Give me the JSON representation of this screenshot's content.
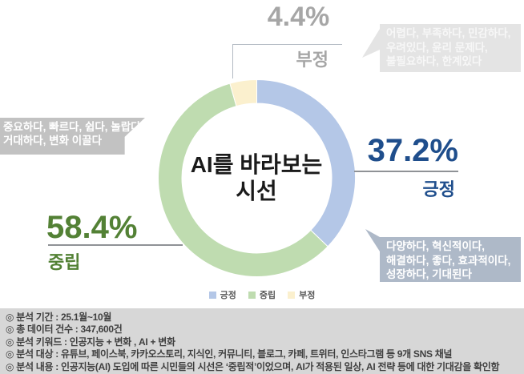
{
  "chart": {
    "center_lines": [
      "AI를 바라보는",
      "시선"
    ]
  },
  "chart_data": {
    "type": "pie",
    "subtype": "donut",
    "title": "AI를 바라보는 시선",
    "categories": [
      "긍정",
      "중립",
      "부정"
    ],
    "values": [
      37.2,
      58.4,
      4.4
    ],
    "unit": "%",
    "colors": [
      "#b4c7e7",
      "#bfdcb0",
      "#fbf0ce"
    ],
    "start_angle_deg": 0,
    "direction": "clockwise",
    "inner_radius_ratio": 0.76,
    "legend_position": "bottom"
  },
  "labels": {
    "positive": {
      "pct": "37.2%",
      "name": "긍정"
    },
    "neutral": {
      "pct": "58.4%",
      "name": "중립"
    },
    "negative": {
      "pct": "4.4%",
      "name": "부정"
    }
  },
  "callouts": {
    "neutral": {
      "lines": [
        "중요하다, 빠르다, 쉽다, 놀랍다,",
        "거대하다, 변화 이끌다"
      ]
    },
    "negative": {
      "lines": [
        "어렵다, 부족하다, 민감하다,",
        "우려있다, 윤리 문제다,",
        "불필요하다, 한계있다"
      ]
    },
    "positive": {
      "lines": [
        "다양하다, 혁신적이다,",
        "해결하다, 좋다, 효과적이다,",
        "성장하다, 기대된다"
      ]
    }
  },
  "legend": {
    "items": [
      {
        "label": "긍정",
        "color": "#b4c7e7"
      },
      {
        "label": "중립",
        "color": "#bfdcb0"
      },
      {
        "label": "부정",
        "color": "#fbf0ce"
      }
    ]
  },
  "footer": {
    "lines": [
      "◎ 분석 기간 : 25.1월~10월",
      "◎ 총 데이터 건수 : 347,600건",
      "◎ 분석 키워드 : 인공지능 + 변화 , AI + 변화",
      "◎ 분석 대상 : 유튜브, 페이스북, 카카오스토리, 지식인, 커뮤니티, 블로그, 카페, 트위터, 인스타그램 등 9개 SNS 채널",
      "◎ 분석 내용 : 인공지능(AI) 도입에 따른 시민들의 시선은 ‘중립적’이었으며, AI가 적용된 일상, AI 전략 등에 대한 기대감을 확인함"
    ]
  },
  "colors": {
    "positive_accent": "#1f4e8c",
    "neutral_accent": "#538135",
    "negative_accent": "#a6a6a6",
    "leader_line": "#8f9296",
    "connector_line": "#b3bac3",
    "callout_neutral_bg": "#c2c2c2",
    "callout_negative_bg": "#e4e4e4",
    "callout_positive_bg": "#aeb9c8",
    "callout_text": "#ffffff",
    "footer_bg": "#d7d7d7",
    "footer_text": "#3f3f3f",
    "legend_text": "#595959",
    "center_text": "#1a1a1a"
  }
}
